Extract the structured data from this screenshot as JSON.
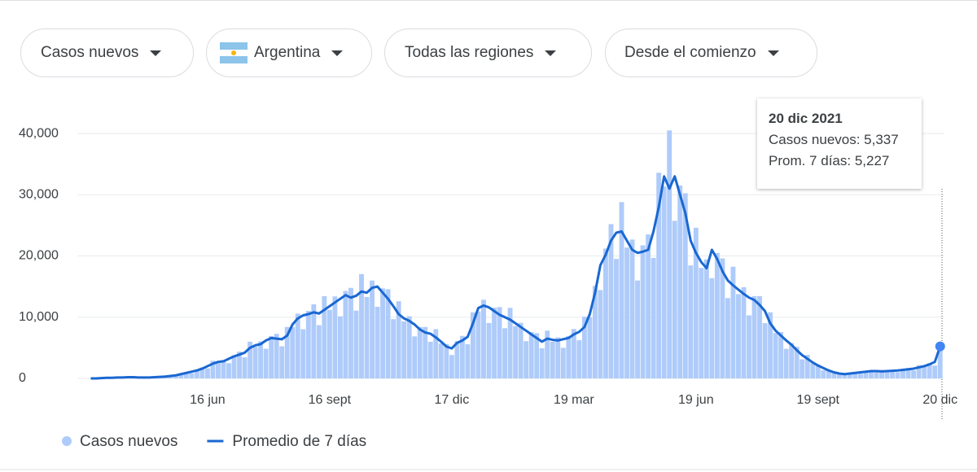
{
  "filters": [
    "Casos nuevos",
    "Argentina",
    "Todas las regiones",
    "Desde el comienzo"
  ],
  "chart_data": {
    "type": "bar",
    "categories": [
      null,
      null,
      null,
      null,
      null,
      null,
      null,
      null,
      null,
      null,
      null,
      null,
      null,
      null,
      null,
      null,
      null,
      null,
      null,
      null,
      null,
      null,
      "16 jun",
      null,
      null,
      null,
      null,
      null,
      null,
      null,
      null,
      null,
      null,
      null,
      null,
      null,
      null,
      null,
      null,
      null,
      null,
      null,
      null,
      null,
      null,
      "16 sept",
      null,
      null,
      null,
      null,
      null,
      null,
      null,
      null,
      null,
      null,
      null,
      null,
      null,
      null,
      null,
      null,
      null,
      null,
      null,
      null,
      null,
      null,
      "17 dic",
      null,
      null,
      null,
      null,
      null,
      null,
      null,
      null,
      null,
      null,
      null,
      null,
      null,
      null,
      null,
      null,
      null,
      null,
      null,
      null,
      null,
      null,
      "19 mar",
      null,
      null,
      null,
      null,
      null,
      null,
      null,
      null,
      null,
      null,
      null,
      null,
      null,
      null,
      null,
      null,
      null,
      null,
      null,
      null,
      null,
      null,
      "19 jun",
      null,
      null,
      null,
      null,
      null,
      null,
      null,
      null,
      null,
      null,
      null,
      null,
      null,
      null,
      null,
      null,
      null,
      null,
      null,
      null,
      null,
      null,
      "19 sept",
      null,
      null,
      null,
      null,
      null,
      null,
      null,
      null,
      null,
      null,
      null,
      null,
      null,
      null,
      null,
      null,
      null,
      null,
      null,
      null,
      null,
      null,
      "20 dic"
    ],
    "series": [
      {
        "name": "Casos nuevos",
        "type": "bar",
        "color": "#aecbfa",
        "values": [
          0,
          0,
          60,
          95,
          108,
          117,
          158,
          224,
          164,
          180,
          143,
          162,
          156,
          263,
          336,
          328,
          600,
          665,
          972,
          858,
          1365,
          1792,
          1640,
          2880,
          2565,
          3024,
          2496,
          3780,
          4368,
          3444,
          6000,
          5130,
          6048,
          4836,
          6930,
          7280,
          5248,
          8400,
          8360,
          10584,
          8034,
          11025,
          12096,
          8692,
          13440,
          11210,
          13392,
          10140,
          14280,
          14784,
          11070,
          17040,
          13300,
          15984,
          11700,
          14700,
          14560,
          9676,
          12600,
          9310,
          10152,
          6864,
          8400,
          8400,
          5986,
          8040,
          5700,
          5616,
          3822,
          6090,
          6944,
          5576,
          10800,
          10925,
          12852,
          9048,
          11550,
          11648,
          8200,
          11520,
          8550,
          9072,
          6084,
          7560,
          7392,
          4920,
          7800,
          5985,
          6696,
          4992,
          6930,
          8064,
          6232,
          10080,
          9975,
          15120,
          14430,
          21210,
          25200,
          19516,
          28800,
          21375,
          22680,
          15990,
          21735,
          23520,
          19680,
          33600,
          31350,
          40500,
          25740,
          31500,
          30240,
          18450,
          24600,
          18050,
          19440,
          16380,
          20475,
          19600,
          13120,
          18240,
          13775,
          14904,
          10296,
          13440,
          13440,
          9020,
          10800,
          7410,
          7560,
          4836,
          5775,
          5152,
          3116,
          3840,
          2470,
          2268,
          1326,
          1365,
          1120,
          656,
          840,
          760,
          972,
          780,
          1155,
          1344,
          984,
          1380,
          1140,
          1350,
          1014,
          1470,
          1680,
          1312,
          2160,
          1900,
          2484,
          2106,
          5337
        ]
      },
      {
        "name": "Promedio de 7 días",
        "type": "line",
        "color": "#1967d2",
        "values": [
          0,
          0,
          50,
          100,
          100,
          150,
          150,
          200,
          200,
          150,
          150,
          150,
          200,
          250,
          300,
          400,
          500,
          700,
          900,
          1100,
          1300,
          1600,
          2000,
          2400,
          2700,
          2800,
          3200,
          3600,
          3900,
          4200,
          5000,
          5400,
          5600,
          6200,
          6600,
          6500,
          6400,
          7000,
          8800,
          9800,
          10300,
          10500,
          10800,
          10600,
          11200,
          11800,
          12400,
          13000,
          13600,
          13200,
          13500,
          14200,
          14000,
          14800,
          15000,
          14000,
          13000,
          11800,
          10500,
          9800,
          9400,
          8800,
          8000,
          7500,
          7300,
          6700,
          6000,
          5200,
          4900,
          5800,
          6200,
          6800,
          9000,
          11500,
          11900,
          11600,
          11000,
          10400,
          10000,
          9600,
          9000,
          8400,
          7800,
          7200,
          6600,
          6000,
          6500,
          6300,
          6200,
          6400,
          6600,
          7200,
          7600,
          8400,
          10500,
          14000,
          18500,
          20200,
          22500,
          23800,
          24000,
          22500,
          21000,
          20500,
          20700,
          21000,
          24000,
          28000,
          33000,
          31000,
          33000,
          30000,
          27000,
          22500,
          20500,
          19000,
          18000,
          21000,
          19500,
          17500,
          16000,
          15200,
          14500,
          13800,
          13200,
          12800,
          12000,
          11000,
          9000,
          7800,
          7000,
          6200,
          5500,
          4600,
          3800,
          3200,
          2600,
          2100,
          1700,
          1300,
          1000,
          800,
          700,
          800,
          900,
          1000,
          1100,
          1200,
          1200,
          1150,
          1200,
          1250,
          1300,
          1400,
          1500,
          1600,
          1800,
          2000,
          2300,
          2700,
          5227
        ]
      }
    ],
    "ylim": [
      0,
      42000
    ],
    "yticks": [
      0,
      {
        "value": 10000,
        "label": "10,000"
      },
      {
        "value": 20000,
        "label": "20,000"
      },
      {
        "value": 30000,
        "label": "30,000"
      },
      {
        "value": 40000,
        "label": "40,000"
      }
    ],
    "grid": true,
    "tooltip": {
      "title": "20 dic 2021",
      "rows": [
        "Casos nuevos: 5,337",
        "Prom. 7 días: 5,227"
      ]
    }
  }
}
